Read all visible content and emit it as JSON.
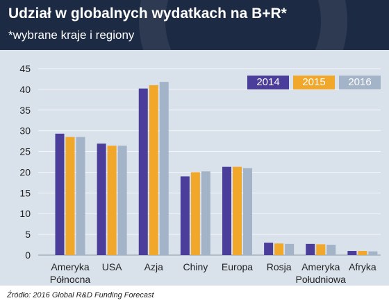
{
  "title": "Udział w globalnych wydatkach na B+R*",
  "subtitle": "*wybrane kraje i regiony",
  "source": "Źródło: 2016 Global R&D Funding Forecast",
  "chart_data": {
    "type": "bar",
    "categories": [
      [
        "Ameryka",
        "Północna"
      ],
      [
        "USA"
      ],
      [
        "Azja"
      ],
      [
        "Chiny"
      ],
      [
        "Europa"
      ],
      [
        "Rosja"
      ],
      [
        "Ameryka",
        "Południowa"
      ],
      [
        "Afryka"
      ]
    ],
    "series": [
      {
        "name": "2014",
        "color": "#4b3d9a",
        "values": [
          29.3,
          26.9,
          40.2,
          19.0,
          21.3,
          3.0,
          2.7,
          1.0
        ]
      },
      {
        "name": "2015",
        "color": "#f1a72a",
        "values": [
          28.5,
          26.4,
          41.0,
          20.0,
          21.3,
          2.8,
          2.6,
          1.0
        ]
      },
      {
        "name": "2016",
        "color": "#a4b4c8",
        "values": [
          28.5,
          26.4,
          41.8,
          20.2,
          21.0,
          2.7,
          2.5,
          0.9
        ]
      }
    ],
    "yticks": [
      0,
      5,
      10,
      15,
      20,
      25,
      30,
      35,
      40,
      45
    ],
    "ylim": [
      0,
      45
    ],
    "grid": true,
    "legend": "top-right"
  }
}
